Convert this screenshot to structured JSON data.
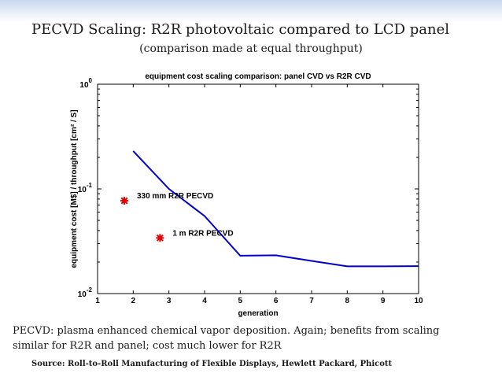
{
  "slide": {
    "title": "PECVD Scaling: R2R photovoltaic  compared to LCD panel",
    "subtitle": "(comparison made at equal throughput)",
    "note_line1": "PECVD: plasma enhanced chemical vapor deposition. Again; benefits from scaling",
    "note_line2": "similar for R2R and panel; cost much lower for R2R",
    "source": "Source: Roll-to-Roll Manufacturing of Flexible Displays, Hewlett Packard, Phicott"
  },
  "chart_data": {
    "type": "line",
    "title": "equipment cost scaling comparison: panel CVD vs R2R CVD",
    "xlabel": "generation",
    "ylabel": "equipment cost [M$] / throughput [cm² / S]",
    "xlim": [
      1,
      10
    ],
    "ylim": [
      0.01,
      1
    ],
    "yscale": "log",
    "x_ticks": [
      "1",
      "2",
      "3",
      "4",
      "5",
      "6",
      "7",
      "8",
      "9",
      "10"
    ],
    "y_ticks": [
      {
        "base": "10",
        "exp": "0",
        "value": 1
      },
      {
        "base": "10",
        "exp": "-1",
        "value": 0.1
      },
      {
        "base": "10",
        "exp": "-2",
        "value": 0.01
      }
    ],
    "series": [
      {
        "name": "panel CVD",
        "color": "#0000cc",
        "x": [
          2,
          3,
          4,
          5,
          6,
          7,
          8,
          9,
          10
        ],
        "y": [
          0.23,
          0.1,
          0.055,
          0.023,
          0.0232,
          0.0205,
          0.0182,
          0.0182,
          0.0183
        ]
      }
    ],
    "points": [
      {
        "label": "330 mm R2R PECVD",
        "x": 1.75,
        "y": 0.077,
        "color": "#e00000"
      },
      {
        "label": "1 m R2R PECVD",
        "x": 2.75,
        "y": 0.034,
        "color": "#e00000"
      }
    ]
  }
}
